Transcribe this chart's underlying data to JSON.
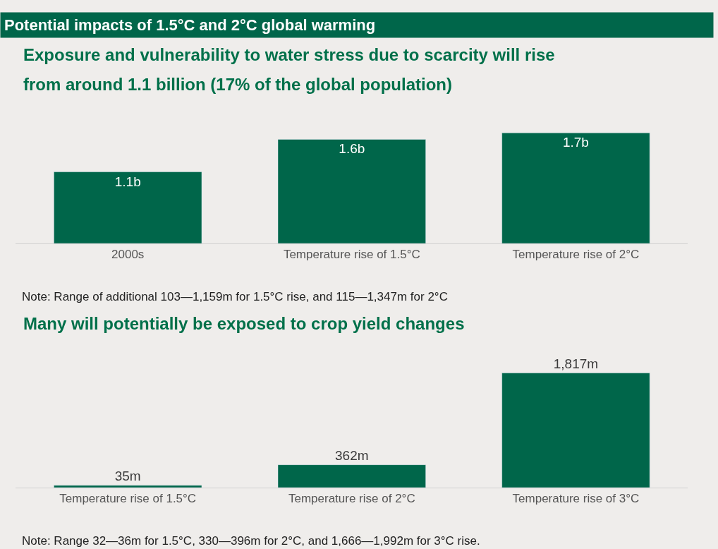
{
  "chart_data": [
    {
      "type": "bar",
      "title": "Potential impacts of 1.5°C and 2°C global warming",
      "subtitle": "Exposure and vulnerability to water stress due to scarcity will rise from around 1.1 billion (17% of the global population)",
      "categories": [
        "2000s",
        "Temperature rise of 1.5°C",
        "Temperature rise of 2°C"
      ],
      "values": [
        1.1,
        1.6,
        1.7
      ],
      "value_labels": [
        "1.1b",
        "1.6b",
        "1.7b"
      ],
      "color": "#00664a",
      "annotations": [
        "Note: Range of additional 103—1,159m for 1.5°C rise, and 115—1,347m for 2°C"
      ]
    },
    {
      "type": "bar",
      "title": "Many will potentially be exposed to crop yield changes",
      "categories": [
        "Temperature rise of 1.5°C",
        "Temperature rise of 2°C",
        "Temperature rise of 3°C"
      ],
      "values": [
        35,
        362,
        1817
      ],
      "value_labels": [
        "35m",
        "362m",
        "1,817m"
      ],
      "color": "#00664a",
      "annotations": [
        "Note: Range 32—36m for 1.5°C, 330—396m for 2°C, and 1,666—1,992m for 3°C rise."
      ]
    }
  ]
}
